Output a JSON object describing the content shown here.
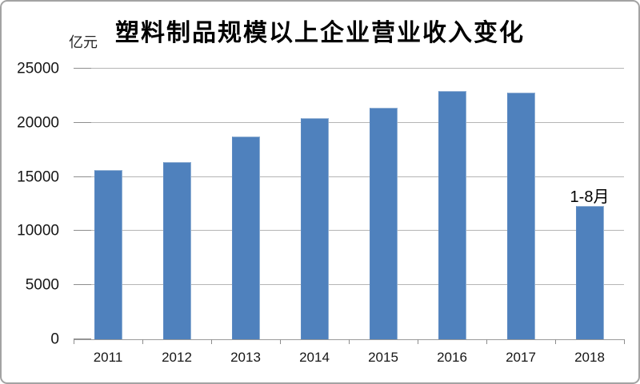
{
  "title": "塑料制品规模以上企业营业收入变化",
  "unit_label": "亿元",
  "annotation_label": "1-8月",
  "colors": {
    "bar": "#4f81bd",
    "bar_highlight": "#93b1d4",
    "gridline": "#b5b5b5",
    "axis": "#9a9a9a",
    "tick": "#8d8d8d",
    "text": "#161616",
    "frame_border": "#a3a3a3",
    "background": "#ffffff"
  },
  "chart_data": {
    "type": "bar",
    "title": "塑料制品规模以上企业营业收入变化",
    "categories": [
      "2011",
      "2012",
      "2013",
      "2014",
      "2015",
      "2016",
      "2017",
      "2018"
    ],
    "values": [
      15600,
      16400,
      18700,
      20400,
      21400,
      22900,
      22800,
      12300
    ],
    "xlabel": "",
    "ylabel": "亿元",
    "ylim": [
      0,
      25000
    ],
    "yticks": [
      0,
      5000,
      10000,
      15000,
      20000,
      25000
    ],
    "grid": true,
    "legend": "none",
    "annotations": [
      {
        "text": "1-8月",
        "category": "2018",
        "position": "above-bar"
      }
    ]
  }
}
